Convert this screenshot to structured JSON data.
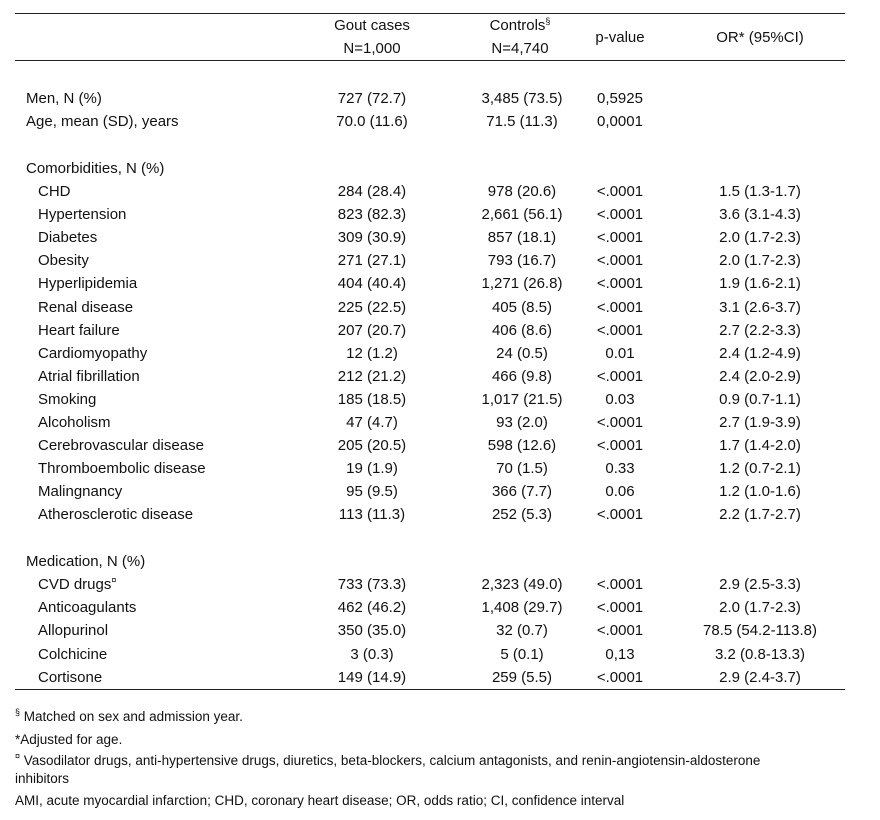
{
  "header": {
    "gout_cases": "Gout cases",
    "gout_n": "N=1,000",
    "controls": "Controls",
    "controls_mark": "§",
    "controls_n": "N=4,740",
    "p_value": "p-value",
    "or_ci": "OR* (95%CI)"
  },
  "general": [
    {
      "label": "Men, N (%)",
      "gout": "727 (72.7)",
      "controls": "3,485 (73.5)",
      "p": "0,5925",
      "or": ""
    },
    {
      "label": "Age, mean (SD), years",
      "gout": "70.0 (11.6)",
      "controls": "71.5 (11.3)",
      "p": "0,0001",
      "or": ""
    }
  ],
  "comorbidities": {
    "title": "Comorbidities, N (%)",
    "rows": [
      {
        "label": "CHD",
        "gout": "284 (28.4)",
        "controls": "978 (20.6)",
        "p": "<.0001",
        "or": "1.5 (1.3-1.7)"
      },
      {
        "label": "Hypertension",
        "gout": "823 (82.3)",
        "controls": "2,661 (56.1)",
        "p": "<.0001",
        "or": "3.6 (3.1-4.3)"
      },
      {
        "label": "Diabetes",
        "gout": "309 (30.9)",
        "controls": "857 (18.1)",
        "p": "<.0001",
        "or": "2.0 (1.7-2.3)"
      },
      {
        "label": "Obesity",
        "gout": "271 (27.1)",
        "controls": "793 (16.7)",
        "p": "<.0001",
        "or": "2.0 (1.7-2.3)"
      },
      {
        "label": "Hyperlipidemia",
        "gout": "404 (40.4)",
        "controls": "1,271 (26.8)",
        "p": "<.0001",
        "or": "1.9 (1.6-2.1)"
      },
      {
        "label": "Renal disease",
        "gout": "225 (22.5)",
        "controls": "405 (8.5)",
        "p": "<.0001",
        "or": "3.1 (2.6-3.7)"
      },
      {
        "label": "Heart failure",
        "gout": "207 (20.7)",
        "controls": "406 (8.6)",
        "p": "<.0001",
        "or": "2.7 (2.2-3.3)"
      },
      {
        "label": "Cardiomyopathy",
        "gout": "12 (1.2)",
        "controls": "24 (0.5)",
        "p": "0.01",
        "or": "2.4 (1.2-4.9)"
      },
      {
        "label": "Atrial fibrillation",
        "gout": "212 (21.2)",
        "controls": "466 (9.8)",
        "p": "<.0001",
        "or": "2.4 (2.0-2.9)"
      },
      {
        "label": "Smoking",
        "gout": "185 (18.5)",
        "controls": "1,017 (21.5)",
        "p": "0.03",
        "or": "0.9 (0.7-1.1)"
      },
      {
        "label": "Alcoholism",
        "gout": "47 (4.7)",
        "controls": "93 (2.0)",
        "p": "<.0001",
        "or": "2.7 (1.9-3.9)"
      },
      {
        "label": "Cerebrovascular disease",
        "gout": "205 (20.5)",
        "controls": "598 (12.6)",
        "p": "<.0001",
        "or": "1.7 (1.4-2.0)"
      },
      {
        "label": "Thromboembolic disease",
        "gout": "19 (1.9)",
        "controls": "70 (1.5)",
        "p": "0.33",
        "or": "1.2 (0.7-2.1)"
      },
      {
        "label": "Malingnancy",
        "gout": "95 (9.5)",
        "controls": "366 (7.7)",
        "p": "0.06",
        "or": "1.2 (1.0-1.6)"
      },
      {
        "label": "Atherosclerotic disease",
        "gout": "113 (11.3)",
        "controls": "252 (5.3)",
        "p": "<.0001",
        "or": "2.2 (1.7-2.7)"
      }
    ]
  },
  "medication": {
    "title": "Medication, N (%)",
    "rows": [
      {
        "label": "CVD drugs",
        "mark": "¤",
        "gout": "733 (73.3)",
        "controls": "2,323 (49.0)",
        "p": "<.0001",
        "or": "2.9 (2.5-3.3)"
      },
      {
        "label": "Anticoagulants",
        "gout": "462 (46.2)",
        "controls": "1,408 (29.7)",
        "p": "<.0001",
        "or": "2.0 (1.7-2.3)"
      },
      {
        "label": "Allopurinol",
        "gout": "350 (35.0)",
        "controls": "32 (0.7)",
        "p": "<.0001",
        "or": "78.5 (54.2-113.8)"
      },
      {
        "label": "Colchicine",
        "gout": "3 (0.3)",
        "controls": "5 (0.1)",
        "p": "0,13",
        "or": "3.2 (0.8-13.3)"
      },
      {
        "label": "Cortisone",
        "gout": "149 (14.9)",
        "controls": "259 (5.5)",
        "p": "<.0001",
        "or": "2.9 (2.4-3.7)"
      }
    ]
  },
  "footnotes": {
    "matched_mark": "§",
    "matched": " Matched on sex and admission year.",
    "adjusted": "*Adjusted for age.",
    "cvd_mark": "¤",
    "cvd_line1": " Vasodilator drugs, anti-hypertensive drugs, diuretics, beta-blockers, calcium antagonists, and renin-angiotensin-aldosterone",
    "cvd_line2": "inhibitors",
    "abbrev": "AMI, acute myocardial infarction; CHD, coronary heart disease; OR, odds ratio; CI, confidence interval"
  }
}
